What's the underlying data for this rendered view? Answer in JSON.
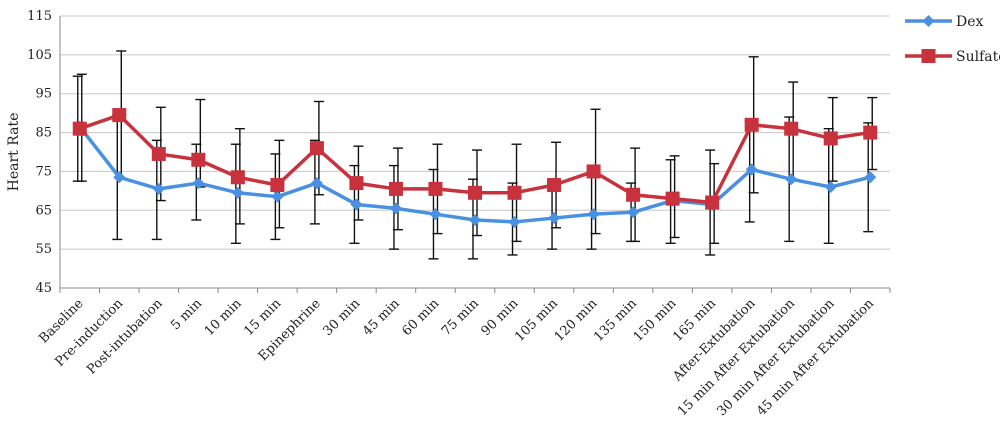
{
  "chart_data": {
    "type": "line",
    "title": "",
    "xlabel": "",
    "ylabel": "Heart Rate",
    "ylim": [
      45,
      115
    ],
    "yticks": [
      45,
      55,
      65,
      75,
      85,
      95,
      105,
      115
    ],
    "grid": true,
    "legend_position": "right",
    "categories": [
      "Baseline",
      "Pre-induction",
      "Post-intubation",
      "5 min",
      "10 min",
      "15 min",
      "Epinephrine",
      "30 min",
      "45 min",
      "60 min",
      "75 min",
      "90 min",
      "105 min",
      "120 min",
      "135 min",
      "150 min",
      "165 min",
      "After-Extubation",
      "15 min After Extubation",
      "30 min After Extubation",
      "45 min After Extubation"
    ],
    "series": [
      {
        "name": "Dex",
        "color": "#4a90e2",
        "marker": "diamond",
        "values": [
          86.5,
          73.5,
          70.5,
          72,
          69.5,
          68.5,
          72,
          66.5,
          65.5,
          64,
          62.5,
          62,
          63,
          64,
          64.5,
          67.5,
          66.5,
          75.5,
          73,
          71,
          73.5
        ],
        "error_low": [
          72.5,
          57.5,
          57.5,
          62.5,
          56.5,
          57.5,
          61.5,
          56.5,
          55,
          52.5,
          52.5,
          53.5,
          55,
          55,
          57,
          56.5,
          53.5,
          62,
          57,
          56.5,
          59.5
        ],
        "error_high": [
          99.5,
          89.5,
          83,
          82,
          82,
          79.5,
          83,
          76.5,
          76.5,
          75.5,
          73,
          72,
          72,
          74,
          72,
          78,
          80.5,
          88,
          89,
          86,
          87.5
        ]
      },
      {
        "name": "Sulfate",
        "color": "#c8323c",
        "marker": "square",
        "values": [
          86,
          89.5,
          79.5,
          78,
          73.5,
          71.5,
          81,
          72,
          70.5,
          70.5,
          69.5,
          69.5,
          71.5,
          75,
          69,
          68,
          67,
          87,
          86,
          83.5,
          85
        ],
        "error_low": [
          72.5,
          73,
          67.5,
          71,
          61.5,
          60.5,
          69,
          62.5,
          60,
          59,
          58.5,
          57,
          60.5,
          59,
          57,
          58,
          56.5,
          69.5,
          73,
          72.5,
          75.5
        ],
        "error_high": [
          100,
          106,
          91.5,
          93.5,
          86,
          83,
          93,
          81.5,
          81,
          82,
          80.5,
          82,
          82.5,
          91,
          81,
          79,
          77,
          104.5,
          98,
          94,
          94
        ]
      }
    ]
  }
}
